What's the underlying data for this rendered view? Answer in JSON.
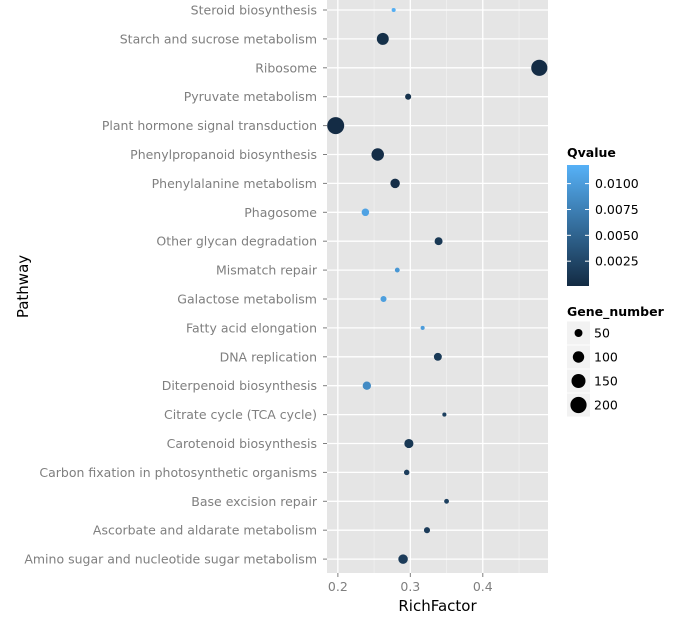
{
  "chart_data": {
    "type": "scatter",
    "xlabel": "RichFactor",
    "ylabel": "Pathway",
    "xlim": [
      0.185,
      0.49
    ],
    "x_ticks": [
      0.2,
      0.3,
      0.4
    ],
    "grid": true,
    "legend_position": "right",
    "categories": [
      "Steroid biosynthesis",
      "Starch and sucrose metabolism",
      "Ribosome",
      "Pyruvate metabolism",
      "Plant hormone signal transduction",
      "Phenylpropanoid biosynthesis",
      "Phenylalanine metabolism",
      "Phagosome",
      "Other glycan degradation",
      "Mismatch repair",
      "Galactose metabolism",
      "Fatty acid elongation",
      "DNA replication",
      "Diterpenoid biosynthesis",
      "Citrate cycle (TCA cycle)",
      "Carotenoid biosynthesis",
      "Carbon fixation in photosynthetic organisms",
      "Base excision repair",
      "Ascorbate and aldarate metabolism",
      "Amino sugar and nucleotide sugar metabolism"
    ],
    "points": [
      {
        "pathway": "Steroid biosynthesis",
        "rich_factor": 0.277,
        "qvalue": 0.0115,
        "gene_number": 15
      },
      {
        "pathway": "Starch and sucrose metabolism",
        "rich_factor": 0.262,
        "qvalue": 0.0005,
        "gene_number": 110
      },
      {
        "pathway": "Ribosome",
        "rich_factor": 0.478,
        "qvalue": 0.0002,
        "gene_number": 200
      },
      {
        "pathway": "Pyruvate metabolism",
        "rich_factor": 0.297,
        "qvalue": 0.0007,
        "gene_number": 30
      },
      {
        "pathway": "Plant hormone signal transduction",
        "rich_factor": 0.197,
        "qvalue": 0.0002,
        "gene_number": 220
      },
      {
        "pathway": "Phenylpropanoid biosynthesis",
        "rich_factor": 0.255,
        "qvalue": 0.0004,
        "gene_number": 120
      },
      {
        "pathway": "Phenylalanine metabolism",
        "rich_factor": 0.279,
        "qvalue": 0.0004,
        "gene_number": 70
      },
      {
        "pathway": "Phagosome",
        "rich_factor": 0.238,
        "qvalue": 0.0105,
        "gene_number": 45
      },
      {
        "pathway": "Other glycan degradation",
        "rich_factor": 0.339,
        "qvalue": 0.0012,
        "gene_number": 50
      },
      {
        "pathway": "Mismatch repair",
        "rich_factor": 0.282,
        "qvalue": 0.0095,
        "gene_number": 20
      },
      {
        "pathway": "Galactose metabolism",
        "rich_factor": 0.263,
        "qvalue": 0.0102,
        "gene_number": 30
      },
      {
        "pathway": "Fatty acid elongation",
        "rich_factor": 0.317,
        "qvalue": 0.01,
        "gene_number": 15
      },
      {
        "pathway": "DNA replication",
        "rich_factor": 0.338,
        "qvalue": 0.0014,
        "gene_number": 50
      },
      {
        "pathway": "Diterpenoid biosynthesis",
        "rich_factor": 0.24,
        "qvalue": 0.0085,
        "gene_number": 55
      },
      {
        "pathway": "Citrate cycle (TCA cycle)",
        "rich_factor": 0.347,
        "qvalue": 0.002,
        "gene_number": 15
      },
      {
        "pathway": "Carotenoid biosynthesis",
        "rich_factor": 0.298,
        "qvalue": 0.0012,
        "gene_number": 65
      },
      {
        "pathway": "Carbon fixation in photosynthetic organisms",
        "rich_factor": 0.295,
        "qvalue": 0.0018,
        "gene_number": 25
      },
      {
        "pathway": "Base excision repair",
        "rich_factor": 0.35,
        "qvalue": 0.002,
        "gene_number": 20
      },
      {
        "pathway": "Ascorbate and aldarate metabolism",
        "rich_factor": 0.323,
        "qvalue": 0.0016,
        "gene_number": 30
      },
      {
        "pathway": "Amino sugar and nucleotide sugar metabolism",
        "rich_factor": 0.29,
        "qvalue": 0.0015,
        "gene_number": 70
      }
    ],
    "color_legend": {
      "title": "Qvalue",
      "ticks": [
        0.0025,
        0.005,
        0.0075,
        0.01
      ],
      "tick_labels": [
        "0.0025",
        "0.0050",
        "0.0075",
        "0.0100"
      ],
      "range": [
        0.0001,
        0.0118
      ],
      "low_color": "#132b43",
      "high_color": "#56b1f7"
    },
    "size_legend": {
      "title": "Gene_number",
      "values": [
        50,
        100,
        150,
        200
      ],
      "labels": [
        "50",
        "100",
        "150",
        "200"
      ],
      "range": [
        10,
        220
      ]
    },
    "panel_background": "#e5e5e5",
    "grid_color": "#ffffff",
    "text_color": "#7f7f7f"
  }
}
